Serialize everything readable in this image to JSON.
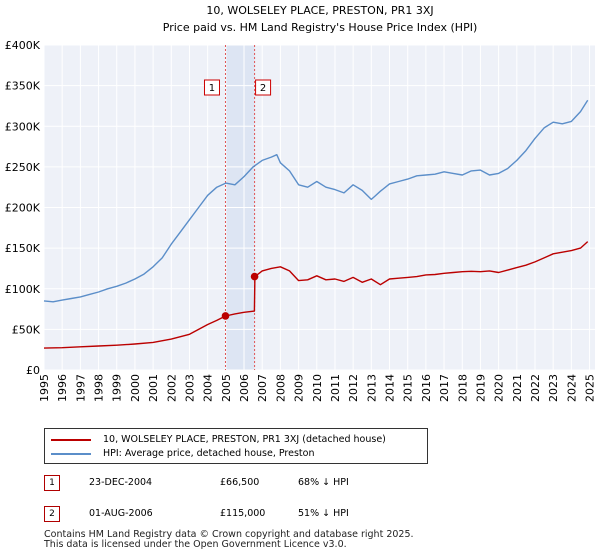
{
  "chart_data": {
    "type": "line",
    "title": "10, WOLSELEY PLACE, PRESTON, PR1 3XJ",
    "subtitle": "Price paid vs. HM Land Registry's House Price Index (HPI)",
    "xlabel": "",
    "ylabel": "",
    "xlim": [
      1995,
      2025.3
    ],
    "ylim": [
      0,
      400000
    ],
    "y_ticks": [
      {
        "v": 0,
        "label": "£0"
      },
      {
        "v": 50000,
        "label": "£50K"
      },
      {
        "v": 100000,
        "label": "£100K"
      },
      {
        "v": 150000,
        "label": "£150K"
      },
      {
        "v": 200000,
        "label": "£200K"
      },
      {
        "v": 250000,
        "label": "£250K"
      },
      {
        "v": 300000,
        "label": "£300K"
      },
      {
        "v": 350000,
        "label": "£350K"
      },
      {
        "v": 400000,
        "label": "£400K"
      }
    ],
    "x_ticks": [
      "1995",
      "1996",
      "1997",
      "1998",
      "1999",
      "2000",
      "2001",
      "2002",
      "2003",
      "2004",
      "2005",
      "2006",
      "2007",
      "2008",
      "2009",
      "2010",
      "2011",
      "2012",
      "2013",
      "2014",
      "2015",
      "2016",
      "2017",
      "2018",
      "2019",
      "2020",
      "2021",
      "2022",
      "2023",
      "2024",
      "2025"
    ],
    "grid": true,
    "series": [
      {
        "name": "10, WOLSELEY PLACE, PRESTON, PR1 3XJ (detached house)",
        "color": "#bb0000",
        "x": [
          1995.0,
          1996.0,
          1997.0,
          1998.0,
          1999.0,
          2000.0,
          2001.0,
          2002.0,
          2003.0,
          2003.5,
          2004.0,
          2004.5,
          2004.98,
          2005.5,
          2006.0,
          2006.57,
          2006.6,
          2007.0,
          2007.5,
          2008.0,
          2008.5,
          2009.0,
          2009.5,
          2010.0,
          2010.5,
          2011.0,
          2011.5,
          2012.0,
          2012.5,
          2013.0,
          2013.5,
          2014.0,
          2014.5,
          2015.0,
          2015.5,
          2016.0,
          2016.5,
          2017.0,
          2017.5,
          2018.0,
          2018.5,
          2019.0,
          2019.5,
          2020.0,
          2020.5,
          2021.0,
          2021.5,
          2022.0,
          2022.5,
          2023.0,
          2023.5,
          2024.0,
          2024.5,
          2024.9
        ],
        "y": [
          27000,
          27500,
          28500,
          29500,
          30500,
          32000,
          34000,
          38000,
          44000,
          50000,
          56000,
          61000,
          66500,
          69000,
          71000,
          72500,
          115000,
          122000,
          125000,
          127000,
          122000,
          110000,
          111000,
          116000,
          111000,
          112000,
          109000,
          114000,
          108000,
          112000,
          105000,
          112000,
          113000,
          114000,
          115000,
          117000,
          117500,
          119000,
          120000,
          121000,
          121500,
          121000,
          122000,
          120000,
          123000,
          126000,
          129000,
          133000,
          138000,
          143000,
          145000,
          147000,
          150000,
          158000
        ]
      },
      {
        "name": "HPI: Average price, detached house, Preston",
        "color": "#5b8ec9",
        "x": [
          1995.0,
          1995.5,
          1996.0,
          1996.5,
          1997.0,
          1997.5,
          1998.0,
          1998.5,
          1999.0,
          1999.5,
          2000.0,
          2000.5,
          2001.0,
          2001.5,
          2002.0,
          2002.5,
          2003.0,
          2003.5,
          2004.0,
          2004.5,
          2005.0,
          2005.5,
          2006.0,
          2006.5,
          2007.0,
          2007.5,
          2007.8,
          2008.0,
          2008.5,
          2009.0,
          2009.5,
          2010.0,
          2010.5,
          2011.0,
          2011.5,
          2012.0,
          2012.5,
          2013.0,
          2013.2,
          2013.5,
          2014.0,
          2014.5,
          2015.0,
          2015.5,
          2016.0,
          2016.5,
          2017.0,
          2017.5,
          2018.0,
          2018.5,
          2019.0,
          2019.5,
          2020.0,
          2020.5,
          2021.0,
          2021.5,
          2022.0,
          2022.5,
          2023.0,
          2023.5,
          2024.0,
          2024.5,
          2024.9
        ],
        "y": [
          85000,
          84000,
          86000,
          88000,
          90000,
          93000,
          96000,
          100000,
          103000,
          107000,
          112000,
          118000,
          127000,
          138000,
          155000,
          170000,
          185000,
          200000,
          215000,
          225000,
          230000,
          228000,
          238000,
          250000,
          258000,
          262000,
          265000,
          255000,
          245000,
          228000,
          225000,
          232000,
          225000,
          222000,
          218000,
          228000,
          221000,
          210000,
          214000,
          220000,
          229000,
          232000,
          235000,
          239000,
          240000,
          241000,
          244000,
          242000,
          240000,
          245000,
          246000,
          240000,
          242000,
          248000,
          258000,
          270000,
          285000,
          298000,
          305000,
          303000,
          306000,
          318000,
          332000
        ]
      }
    ],
    "annotations": [
      {
        "label": "1",
        "x": 2004.98
      },
      {
        "label": "2",
        "x": 2006.58
      }
    ],
    "sale_points": [
      {
        "x": 2004.98,
        "y": 66500
      },
      {
        "x": 2006.58,
        "y": 115000
      }
    ],
    "legend_position": "bottom"
  },
  "legend": {
    "property_label": "10, WOLSELEY PLACE, PRESTON, PR1 3XJ (detached house)",
    "hpi_label": "HPI: Average price, detached house, Preston",
    "property_color": "#bb0000",
    "hpi_color": "#5b8ec9"
  },
  "transactions": [
    {
      "badge": "1",
      "date": "23-DEC-2004",
      "price": "£66,500",
      "hpi": "68% ↓ HPI"
    },
    {
      "badge": "2",
      "date": "01-AUG-2006",
      "price": "£115,000",
      "hpi": "51% ↓ HPI"
    }
  ],
  "footer": {
    "line1": "Contains HM Land Registry data © Crown copyright and database right 2025.",
    "line2": "This data is licensed under the Open Government Licence v3.0."
  }
}
